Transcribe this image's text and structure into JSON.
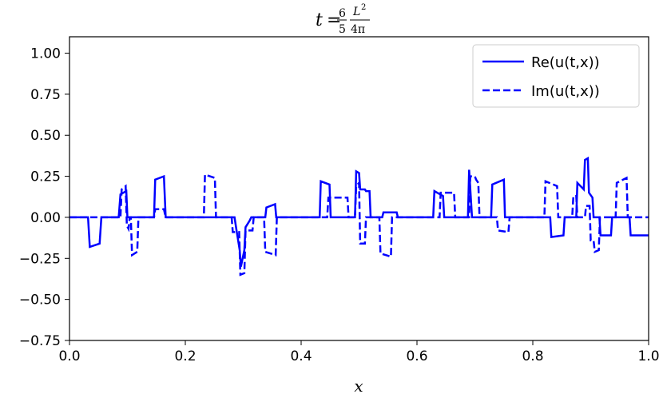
{
  "chart_data": {
    "type": "line",
    "title": {
      "lhs": "t",
      "equals": "=",
      "frac1_num": "6",
      "frac1_den": "5",
      "frac2_num": "L",
      "frac2_num_sup": "2",
      "frac2_den": "4π"
    },
    "xlabel": "x",
    "ylabel": "",
    "xlim": [
      0.0,
      1.0
    ],
    "ylim": [
      -0.75,
      1.1
    ],
    "xticks": [
      "0.0",
      "0.2",
      "0.4",
      "0.6",
      "0.8",
      "1.0"
    ],
    "yticks": [
      "−0.75",
      "−0.50",
      "−0.25",
      "0.00",
      "0.25",
      "0.50",
      "0.75",
      "1.00"
    ],
    "grid": false,
    "legend_position": "top-right",
    "color": "#0000ff",
    "series": [
      {
        "name": "Re(u(t,x))",
        "style": "solid",
        "x": [
          0.0,
          0.032,
          0.035,
          0.052,
          0.055,
          0.085,
          0.088,
          0.098,
          0.1,
          0.116,
          0.12,
          0.146,
          0.148,
          0.163,
          0.166,
          0.285,
          0.288,
          0.294,
          0.296,
          0.302,
          0.304,
          0.311,
          0.314,
          0.338,
          0.34,
          0.355,
          0.357,
          0.432,
          0.434,
          0.449,
          0.451,
          0.48,
          0.482,
          0.493,
          0.495,
          0.5,
          0.502,
          0.51,
          0.512,
          0.518,
          0.52,
          0.54,
          0.542,
          0.565,
          0.567,
          0.628,
          0.63,
          0.645,
          0.647,
          0.665,
          0.667,
          0.679,
          0.681,
          0.688,
          0.69,
          0.695,
          0.697,
          0.705,
          0.707,
          0.728,
          0.73,
          0.75,
          0.752,
          0.83,
          0.832,
          0.853,
          0.855,
          0.875,
          0.877,
          0.888,
          0.89,
          0.895,
          0.897,
          0.903,
          0.905,
          0.915,
          0.917,
          0.935,
          0.937,
          0.967,
          0.969,
          1.0
        ],
        "y": [
          0.0,
          0.0,
          -0.18,
          -0.16,
          0.0,
          0.0,
          0.14,
          0.16,
          0.0,
          0.0,
          0.0,
          0.0,
          0.23,
          0.25,
          0.0,
          0.0,
          -0.07,
          -0.2,
          -0.3,
          -0.2,
          -0.06,
          -0.02,
          0.0,
          0.0,
          0.06,
          0.08,
          0.0,
          0.0,
          0.22,
          0.2,
          0.0,
          0.0,
          0.0,
          0.0,
          0.28,
          0.27,
          0.17,
          0.17,
          0.16,
          0.16,
          0.0,
          0.0,
          0.03,
          0.03,
          0.0,
          0.0,
          0.16,
          0.13,
          0.0,
          0.0,
          0.0,
          0.0,
          0.0,
          0.0,
          0.29,
          0.0,
          0.0,
          0.0,
          0.0,
          0.0,
          0.2,
          0.23,
          0.0,
          0.0,
          -0.12,
          -0.11,
          0.0,
          0.0,
          0.21,
          0.17,
          0.35,
          0.36,
          0.15,
          0.12,
          0.0,
          0.0,
          -0.11,
          -0.11,
          0.0,
          0.0,
          -0.11,
          -0.11
        ]
      },
      {
        "name": "Im(u(t,x))",
        "style": "dashed",
        "x": [
          0.0,
          0.088,
          0.09,
          0.097,
          0.099,
          0.102,
          0.104,
          0.106,
          0.108,
          0.117,
          0.119,
          0.146,
          0.148,
          0.163,
          0.166,
          0.232,
          0.234,
          0.251,
          0.253,
          0.28,
          0.282,
          0.293,
          0.295,
          0.302,
          0.304,
          0.316,
          0.318,
          0.336,
          0.338,
          0.356,
          0.358,
          0.445,
          0.447,
          0.48,
          0.482,
          0.493,
          0.495,
          0.5,
          0.502,
          0.51,
          0.512,
          0.535,
          0.537,
          0.555,
          0.557,
          0.639,
          0.641,
          0.664,
          0.666,
          0.69,
          0.692,
          0.7,
          0.702,
          0.706,
          0.708,
          0.738,
          0.74,
          0.758,
          0.76,
          0.82,
          0.822,
          0.842,
          0.844,
          0.868,
          0.87,
          0.875,
          0.877,
          0.89,
          0.892,
          0.898,
          0.9,
          0.905,
          0.907,
          0.914,
          0.916,
          0.943,
          0.945,
          0.962,
          0.964,
          1.0
        ],
        "y": [
          0.0,
          0.0,
          0.17,
          0.19,
          -0.05,
          -0.07,
          0.0,
          0.0,
          -0.23,
          -0.21,
          0.0,
          0.0,
          0.05,
          0.05,
          0.0,
          0.0,
          0.26,
          0.24,
          0.0,
          0.0,
          -0.09,
          -0.09,
          -0.35,
          -0.34,
          -0.08,
          -0.08,
          0.0,
          0.0,
          -0.21,
          -0.23,
          0.0,
          0.0,
          0.12,
          0.12,
          0.0,
          0.0,
          0.19,
          0.21,
          -0.16,
          -0.16,
          0.0,
          0.0,
          -0.22,
          -0.24,
          0.0,
          0.0,
          0.15,
          0.15,
          0.0,
          0.0,
          0.25,
          0.25,
          0.23,
          0.21,
          0.0,
          0.0,
          -0.08,
          -0.09,
          0.0,
          0.0,
          0.22,
          0.19,
          0.0,
          0.0,
          0.13,
          0.13,
          0.0,
          0.0,
          0.07,
          0.07,
          -0.14,
          -0.14,
          -0.21,
          -0.2,
          0.0,
          0.0,
          0.21,
          0.24,
          0.0,
          0.0
        ]
      }
    ]
  }
}
